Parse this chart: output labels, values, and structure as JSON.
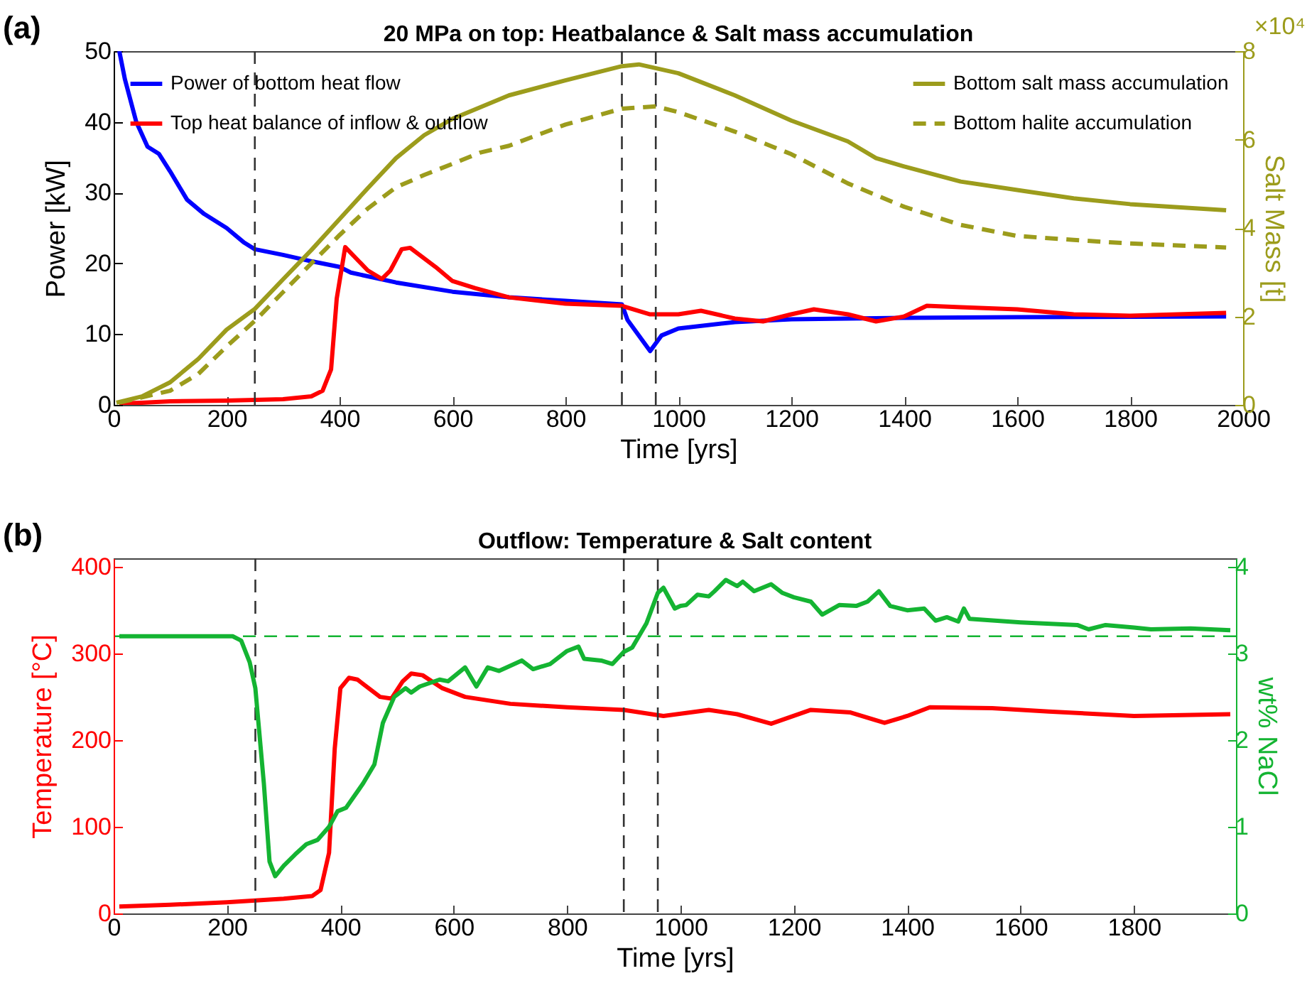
{
  "chart_data": [
    {
      "type": "line",
      "title": "20 MPa on top: Heatbalance & Salt mass accumulation",
      "xlabel": "Time [yrs]",
      "ylabel": "Power [kW]",
      "y2label": "Salt Mass [t]",
      "annotations": [
        "(a)",
        "×10⁴"
      ],
      "xlim": [
        0,
        2000
      ],
      "xticks": [
        0,
        200,
        400,
        600,
        800,
        1000,
        1200,
        1400,
        1600,
        1800,
        2000
      ],
      "ylim": [
        0,
        50
      ],
      "yticks": [
        0,
        10,
        20,
        30,
        40,
        50
      ],
      "y2lim": [
        0,
        8
      ],
      "y2ticks": [
        0,
        2,
        4,
        6,
        8
      ],
      "legend": "top",
      "ref_lines": [
        {
          "axis": "x",
          "value": 250,
          "color": "#333333",
          "line_style": "dashed"
        },
        {
          "axis": "x",
          "value": 900,
          "color": "#333333",
          "line_style": "dashed"
        },
        {
          "axis": "x",
          "value": 960,
          "color": "#333333",
          "line_style": "dashed"
        }
      ],
      "series": [
        {
          "name": "Power of bottom heat flow",
          "color": "#0000ff",
          "x": [
            10,
            20,
            40,
            60,
            80,
            100,
            130,
            160,
            200,
            230,
            250,
            300,
            350,
            400,
            420,
            500,
            600,
            700,
            800,
            900,
            910,
            950,
            970,
            1000,
            1100,
            1200,
            1400,
            1600,
            1970
          ],
          "values": [
            50,
            46,
            40,
            36.5,
            35.5,
            33,
            29,
            27,
            25,
            23,
            22,
            21.2,
            20.3,
            19.5,
            18.7,
            17.3,
            16,
            15.2,
            14.7,
            14.2,
            12,
            7.6,
            9.8,
            10.8,
            11.7,
            12.1,
            12.3,
            12.4,
            12.5
          ]
        },
        {
          "name": "Top heat balance of inflow & outflow",
          "color": "#ff0000",
          "x": [
            10,
            50,
            100,
            200,
            300,
            350,
            370,
            385,
            395,
            410,
            450,
            475,
            490,
            510,
            525,
            545,
            570,
            600,
            640,
            700,
            800,
            900,
            950,
            1000,
            1040,
            1100,
            1150,
            1200,
            1240,
            1300,
            1350,
            1400,
            1440,
            1500,
            1600,
            1700,
            1800,
            1970
          ],
          "values": [
            0.2,
            0.3,
            0.5,
            0.6,
            0.8,
            1.2,
            2,
            5,
            15,
            22.3,
            19,
            17.8,
            19,
            22,
            22.2,
            21,
            19.5,
            17.5,
            16.5,
            15.2,
            14.3,
            14,
            12.8,
            12.8,
            13.3,
            12.2,
            11.8,
            12.8,
            13.5,
            12.8,
            11.8,
            12.5,
            14,
            13.8,
            13.5,
            12.8,
            12.6,
            13
          ]
        },
        {
          "name": "Bottom salt mass accumulation",
          "color": "#9c9c1c",
          "axis": "y2",
          "x": [
            5,
            50,
            100,
            150,
            200,
            250,
            300,
            350,
            400,
            450,
            500,
            550,
            600,
            700,
            800,
            850,
            900,
            930,
            1000,
            1100,
            1200,
            1300,
            1350,
            1400,
            1500,
            1600,
            1700,
            1800,
            1970
          ],
          "values": [
            0.05,
            0.19,
            0.51,
            1.04,
            1.7,
            2.17,
            2.84,
            3.5,
            4.2,
            4.9,
            5.58,
            6.1,
            6.47,
            7.0,
            7.34,
            7.5,
            7.66,
            7.7,
            7.5,
            7.0,
            6.43,
            5.96,
            5.58,
            5.39,
            5.05,
            4.86,
            4.67,
            4.54,
            4.4
          ]
        },
        {
          "name": "Bottom halite accumulation",
          "color": "#9c9c1c",
          "axis": "y2",
          "line_style": "dashed",
          "x": [
            10,
            100,
            150,
            200,
            250,
            300,
            350,
            400,
            450,
            500,
            550,
            600,
            650,
            700,
            800,
            850,
            900,
            960,
            1000,
            1100,
            1200,
            1300,
            1400,
            1500,
            1600,
            1700,
            1800,
            1970
          ],
          "values": [
            0.05,
            0.32,
            0.7,
            1.32,
            1.9,
            2.55,
            3.2,
            3.84,
            4.44,
            4.92,
            5.2,
            5.45,
            5.71,
            5.86,
            6.34,
            6.52,
            6.7,
            6.75,
            6.62,
            6.18,
            5.67,
            5.01,
            4.48,
            4.07,
            3.82,
            3.73,
            3.65,
            3.56
          ]
        }
      ]
    },
    {
      "type": "line",
      "title": "Outflow: Temperature & Salt content",
      "xlabel": "Time [yrs]",
      "ylabel": "Temperature [°C]",
      "y2label": "wt% NaCl",
      "annotations": [
        "(b)"
      ],
      "xlim": [
        0,
        1980
      ],
      "xticks": [
        0,
        200,
        400,
        600,
        800,
        1000,
        1200,
        1400,
        1600,
        1800
      ],
      "ylim": [
        0,
        410
      ],
      "yticks": [
        0,
        100,
        200,
        300,
        400
      ],
      "y2lim": [
        0,
        4.1
      ],
      "y2ticks": [
        0,
        1,
        2,
        3,
        4
      ],
      "ref_lines": [
        {
          "axis": "x",
          "value": 250,
          "color": "#333333",
          "line_style": "dashed"
        },
        {
          "axis": "x",
          "value": 900,
          "color": "#333333",
          "line_style": "dashed"
        },
        {
          "axis": "x",
          "value": 960,
          "color": "#333333",
          "line_style": "dashed"
        },
        {
          "axis": "y2",
          "value": 3.2,
          "color": "#14b432",
          "line_style": "dashed"
        }
      ],
      "series": [
        {
          "color": "#ff0000",
          "x": [
            10,
            100,
            200,
            250,
            300,
            350,
            365,
            380,
            390,
            400,
            415,
            430,
            470,
            490,
            510,
            525,
            545,
            580,
            620,
            700,
            800,
            900,
            970,
            1050,
            1100,
            1160,
            1230,
            1300,
            1360,
            1400,
            1440,
            1550,
            1650,
            1800,
            1970
          ],
          "values": [
            8,
            10,
            13,
            15,
            17,
            20,
            27,
            70,
            190,
            260,
            272,
            270,
            250,
            248,
            268,
            277,
            275,
            260,
            250,
            242,
            238,
            235,
            228,
            235,
            230,
            219,
            235,
            232,
            220,
            228,
            238,
            237,
            233,
            228,
            230
          ]
        },
        {
          "color": "#14b432",
          "axis": "y2",
          "x": [
            10,
            210,
            225,
            240,
            250,
            265,
            275,
            285,
            300,
            320,
            340,
            360,
            380,
            395,
            410,
            440,
            460,
            475,
            495,
            515,
            525,
            540,
            575,
            590,
            620,
            640,
            660,
            680,
            700,
            720,
            740,
            770,
            800,
            820,
            830,
            860,
            880,
            900,
            915,
            940,
            960,
            970,
            990,
            1000,
            1010,
            1030,
            1050,
            1060,
            1080,
            1100,
            1110,
            1130,
            1160,
            1180,
            1200,
            1230,
            1250,
            1280,
            1310,
            1330,
            1350,
            1370,
            1400,
            1430,
            1450,
            1470,
            1490,
            1500,
            1510,
            1600,
            1700,
            1720,
            1750,
            1800,
            1830,
            1900,
            1970
          ],
          "values": [
            3.2,
            3.2,
            3.15,
            2.9,
            2.6,
            1.5,
            0.6,
            0.43,
            0.55,
            0.68,
            0.8,
            0.85,
            1.0,
            1.18,
            1.22,
            1.5,
            1.72,
            2.2,
            2.5,
            2.6,
            2.55,
            2.62,
            2.7,
            2.68,
            2.84,
            2.62,
            2.84,
            2.8,
            2.86,
            2.92,
            2.82,
            2.88,
            3.03,
            3.08,
            2.94,
            2.92,
            2.88,
            3.02,
            3.07,
            3.35,
            3.7,
            3.76,
            3.52,
            3.55,
            3.56,
            3.68,
            3.66,
            3.72,
            3.85,
            3.78,
            3.83,
            3.72,
            3.8,
            3.7,
            3.65,
            3.6,
            3.45,
            3.56,
            3.55,
            3.6,
            3.72,
            3.55,
            3.5,
            3.52,
            3.38,
            3.42,
            3.37,
            3.52,
            3.4,
            3.36,
            3.33,
            3.28,
            3.33,
            3.3,
            3.28,
            3.29,
            3.27
          ]
        }
      ]
    }
  ]
}
